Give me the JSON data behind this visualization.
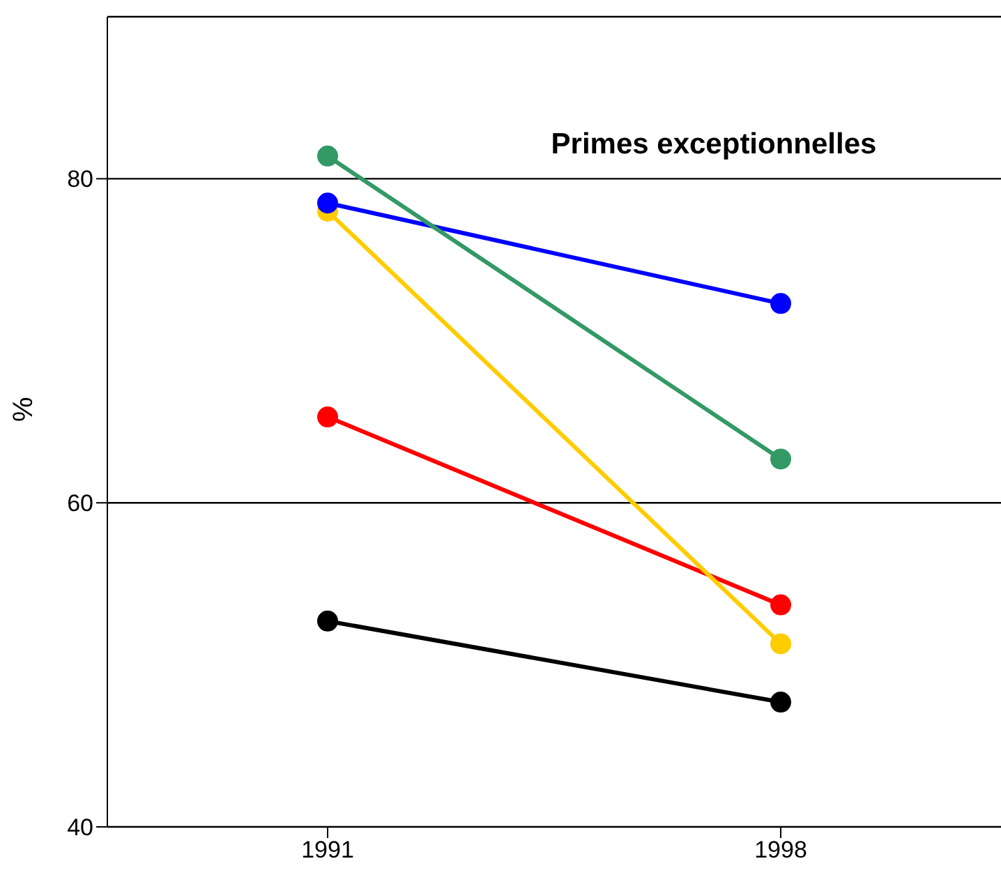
{
  "chart_data": {
    "type": "line",
    "title": "Primes exceptionnelles",
    "ylabel": "%",
    "categories": [
      "1991",
      "1998"
    ],
    "series": [
      {
        "color": "#339966",
        "values": [
          81.4,
          62.7
        ]
      },
      {
        "color": "#0000ff",
        "values": [
          78.5,
          72.3
        ]
      },
      {
        "color": "#ffcc00",
        "values": [
          78.0,
          51.3
        ]
      },
      {
        "color": "#ff0000",
        "values": [
          65.3,
          53.7
        ]
      },
      {
        "color": "#000000",
        "values": [
          52.7,
          47.7
        ]
      }
    ],
    "ylim": [
      40,
      90
    ],
    "yticks": [
      40,
      60,
      80
    ],
    "grid": "y",
    "marker": "circle"
  }
}
